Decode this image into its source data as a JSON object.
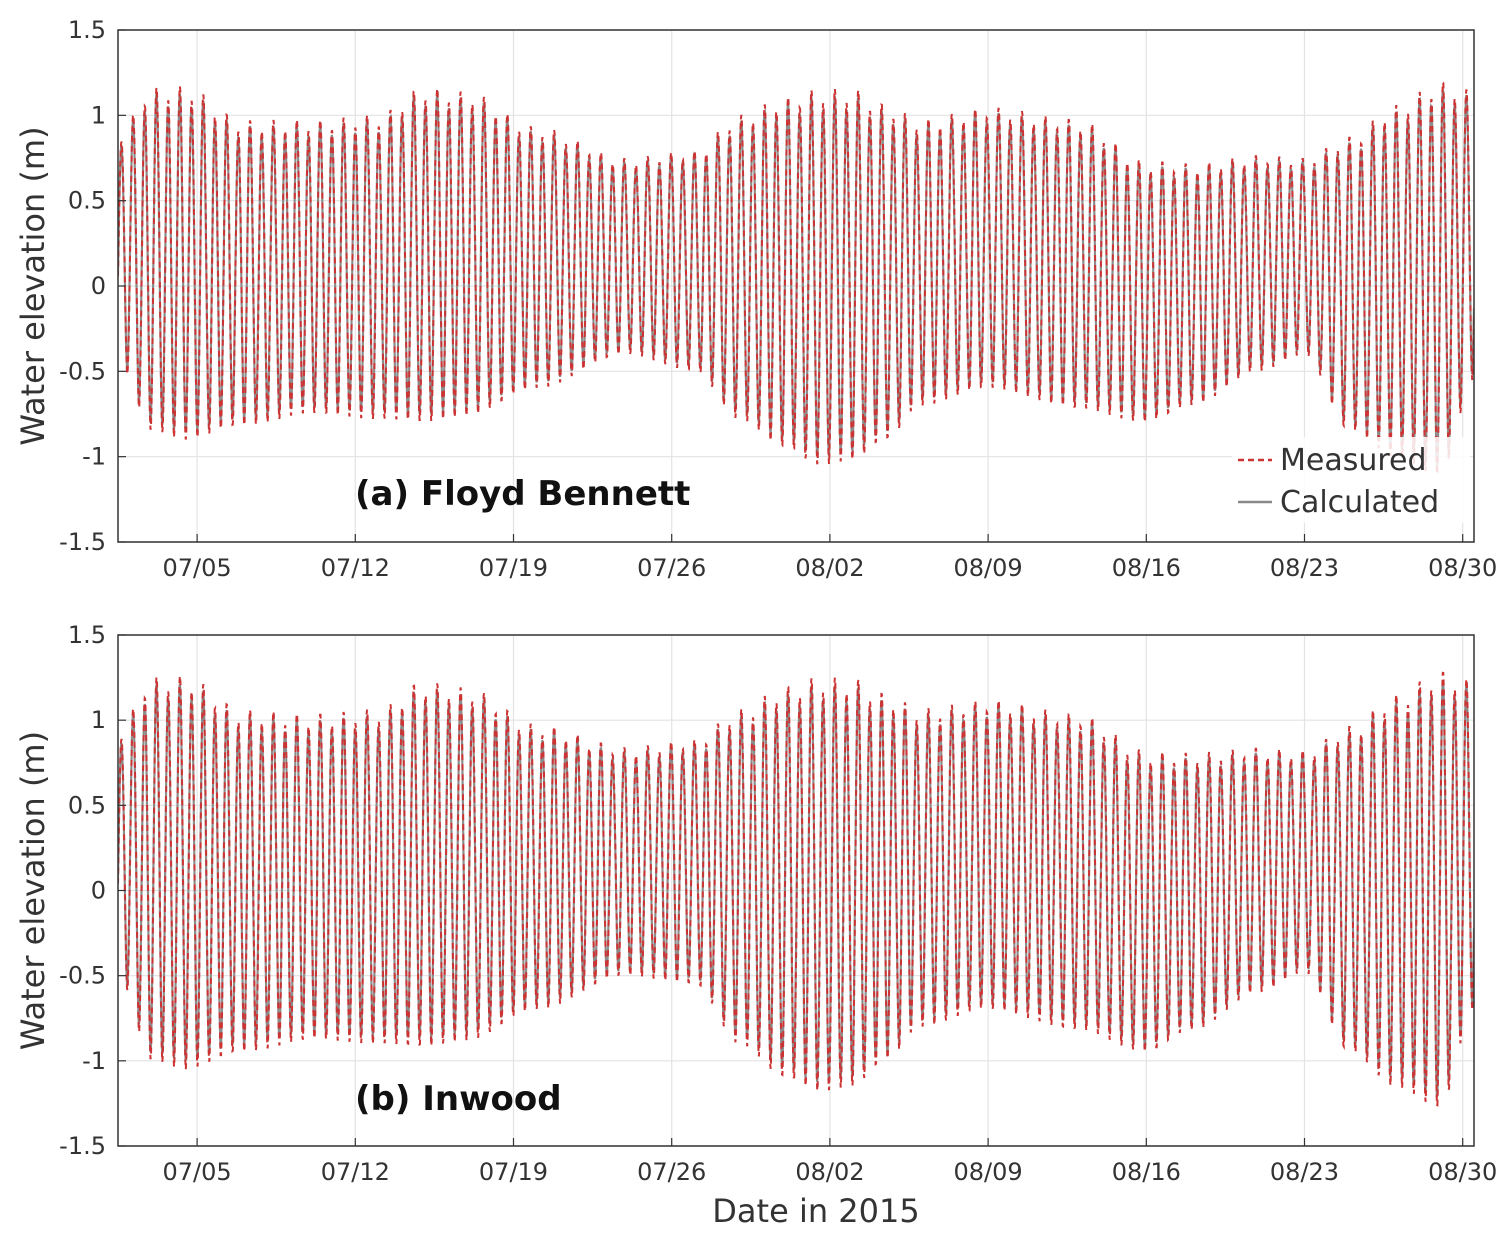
{
  "chart_data": [
    {
      "type": "line",
      "panel_label": "(a) Floyd Bennett",
      "xlabel": "",
      "ylabel": "Water elevation (m)",
      "x_unit": "day of 2015 (0 = 07/01 00:00)",
      "xlim": [
        1.5,
        61.5
      ],
      "ylim": [
        -1.5,
        1.5
      ],
      "yticks": [
        -1.5,
        -1,
        -0.5,
        0,
        0.5,
        1,
        1.5
      ],
      "ytick_labels": [
        "-1.5",
        "-1",
        "-0.5",
        "0",
        "0.5",
        "1",
        "1.5"
      ],
      "xticks": [
        5,
        12,
        19,
        26,
        33,
        40,
        47,
        54,
        61
      ],
      "xtick_labels": [
        "07/05",
        "07/12",
        "07/19",
        "07/26",
        "08/02",
        "08/09",
        "08/16",
        "08/23",
        "08/30"
      ],
      "grid": true,
      "legend": {
        "position": "bottom-right",
        "entries": [
          "Measured",
          "Calculated"
        ]
      },
      "tide_model": {
        "period_days": 0.5175,
        "mean_m": 0.17,
        "phase_days": 0.1
      },
      "envelope": {
        "x": [
          1.5,
          3,
          4.5,
          7,
          10,
          13,
          15,
          17,
          20,
          24,
          27,
          29,
          31,
          32.5,
          34,
          35.5,
          37,
          40,
          44,
          47,
          49,
          52,
          54,
          56,
          58,
          60,
          61.5
        ],
        "high": [
          0.95,
          1.25,
          1.26,
          1.05,
          1.05,
          1.08,
          1.25,
          1.22,
          1.0,
          0.8,
          0.85,
          1.08,
          1.2,
          1.25,
          1.25,
          1.15,
          1.05,
          1.12,
          1.05,
          0.8,
          0.78,
          0.82,
          0.8,
          0.95,
          1.15,
          1.3,
          1.22
        ],
        "low": [
          -0.45,
          -0.85,
          -0.9,
          -0.82,
          -0.75,
          -0.78,
          -0.8,
          -0.76,
          -0.6,
          -0.4,
          -0.5,
          -0.78,
          -0.95,
          -1.05,
          -1.02,
          -0.9,
          -0.7,
          -0.6,
          -0.72,
          -0.8,
          -0.7,
          -0.5,
          -0.4,
          -0.85,
          -1.0,
          -1.12,
          -0.55
        ]
      },
      "series": [
        {
          "name": "Measured",
          "style": "dashed",
          "color": "#cc3333"
        },
        {
          "name": "Calculated",
          "style": "solid",
          "color": "#8a8a8a"
        }
      ]
    },
    {
      "type": "line",
      "panel_label": "(b) Inwood",
      "xlabel": "Date in 2015",
      "ylabel": "Water elevation (m)",
      "x_unit": "day of 2015 (0 = 07/01 00:00)",
      "xlim": [
        1.5,
        61.5
      ],
      "ylim": [
        -1.5,
        1.5
      ],
      "yticks": [
        -1.5,
        -1,
        -0.5,
        0,
        0.5,
        1,
        1.5
      ],
      "ytick_labels": [
        "-1.5",
        "-1",
        "-0.5",
        "0",
        "0.5",
        "1",
        "1.5"
      ],
      "xticks": [
        5,
        12,
        19,
        26,
        33,
        40,
        47,
        54,
        61
      ],
      "xtick_labels": [
        "07/05",
        "07/12",
        "07/19",
        "07/26",
        "08/02",
        "08/09",
        "08/16",
        "08/23",
        "08/30"
      ],
      "grid": true,
      "tide_model": {
        "period_days": 0.5175,
        "mean_m": 0.17,
        "phase_days": 0.1
      },
      "envelope": {
        "x": [
          1.5,
          3,
          4.5,
          7,
          10,
          13,
          15,
          17,
          20,
          24,
          27,
          29,
          31,
          32.5,
          34,
          35.5,
          37,
          40,
          44,
          47,
          49,
          52,
          54,
          56,
          58,
          60,
          61.5
        ],
        "high": [
          1.0,
          1.35,
          1.36,
          1.15,
          1.12,
          1.15,
          1.32,
          1.28,
          1.05,
          0.9,
          0.95,
          1.15,
          1.3,
          1.36,
          1.35,
          1.25,
          1.15,
          1.2,
          1.12,
          0.9,
          0.88,
          0.9,
          0.88,
          1.05,
          1.25,
          1.4,
          1.32
        ],
        "low": [
          -0.5,
          -1.0,
          -1.05,
          -0.95,
          -0.88,
          -0.9,
          -0.92,
          -0.88,
          -0.7,
          -0.5,
          -0.55,
          -0.9,
          -1.1,
          -1.18,
          -1.15,
          -1.0,
          -0.8,
          -0.7,
          -0.82,
          -0.95,
          -0.82,
          -0.6,
          -0.48,
          -0.95,
          -1.15,
          -1.28,
          -0.7
        ]
      },
      "series": [
        {
          "name": "Measured",
          "style": "dashed",
          "color": "#cc3333"
        },
        {
          "name": "Calculated",
          "style": "solid",
          "color": "#8a8a8a"
        }
      ]
    }
  ]
}
